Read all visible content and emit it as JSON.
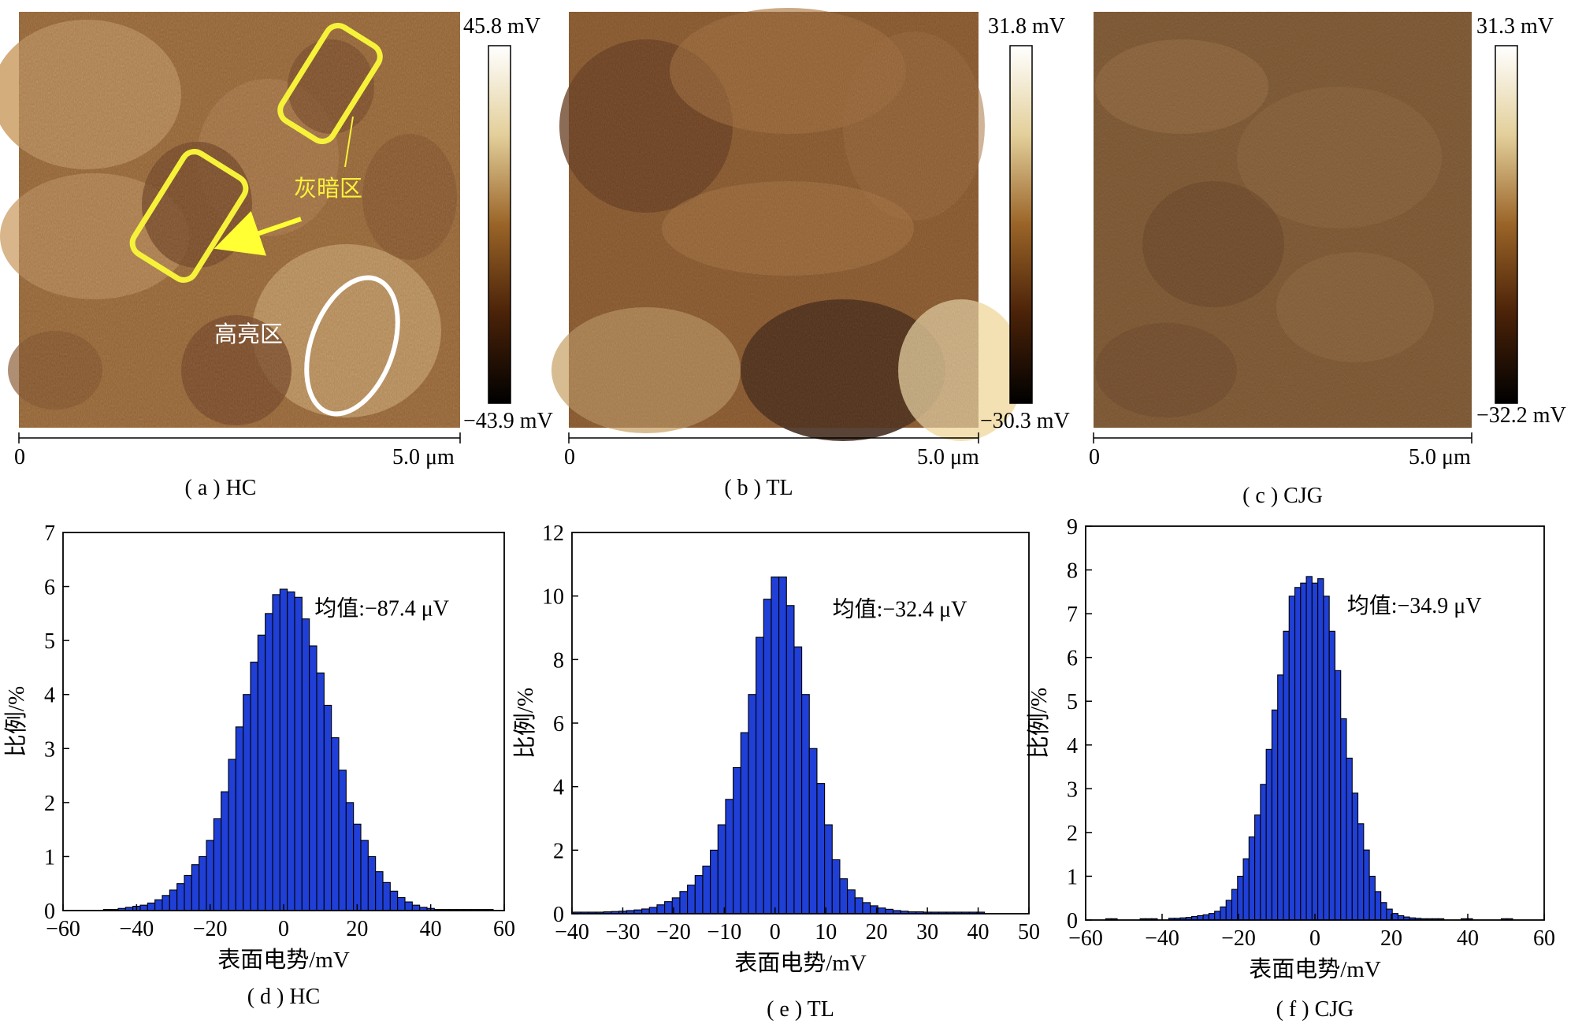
{
  "maps": [
    {
      "caption": "( a ) HC",
      "scale_max": "45.8  mV",
      "scale_min": "−43.9 mV",
      "x_start": "0",
      "x_end": "5.0 μm",
      "annotation_dark": "灰暗区",
      "annotation_bright": "高亮区",
      "colors": {
        "dark": "#5a2e0f",
        "mid": "#9a6428",
        "bright": "#e8c98a"
      }
    },
    {
      "caption": "( b ) TL",
      "scale_max": "31.8  mV",
      "scale_min": "−30.3 mV",
      "x_start": "0",
      "x_end": "5.0 μm",
      "colors": {
        "dark": "#4a2408",
        "mid": "#8a5522",
        "bright": "#e6cc96"
      }
    },
    {
      "caption": "( c ) CJG",
      "scale_max": "31.3  mV",
      "scale_min": "−32.2 mV",
      "x_start": "0",
      "x_end": "5.0 μm",
      "colors": {
        "dark": "#5a3414",
        "mid": "#7e5428",
        "bright": "#c8a06a"
      }
    }
  ],
  "chart_data": [
    {
      "type": "bar",
      "caption": "( d ) HC",
      "xlabel": "表面电势/mV",
      "ylabel": "比例/%",
      "annotation": "均值:−87.4 μV",
      "xlim": [
        -60,
        60
      ],
      "ylim": [
        0,
        7
      ],
      "xticks": [
        -60,
        -40,
        -20,
        0,
        20,
        40,
        60
      ],
      "yticks": [
        0,
        1,
        2,
        3,
        4,
        5,
        6,
        7
      ],
      "bin_width": 2,
      "x": [
        -56,
        -54,
        -52,
        -50,
        -48,
        -46,
        -44,
        -42,
        -40,
        -38,
        -36,
        -34,
        -32,
        -30,
        -28,
        -26,
        -24,
        -22,
        -20,
        -18,
        -16,
        -14,
        -12,
        -10,
        -8,
        -6,
        -4,
        -2,
        0,
        2,
        4,
        6,
        8,
        10,
        12,
        14,
        16,
        18,
        20,
        22,
        24,
        26,
        28,
        30,
        32,
        34,
        36,
        38,
        40,
        42,
        44,
        46,
        48,
        50,
        52,
        54,
        56
      ],
      "values": [
        0,
        0,
        0,
        0,
        0.02,
        0.02,
        0.04,
        0.06,
        0.08,
        0.1,
        0.14,
        0.2,
        0.28,
        0.38,
        0.5,
        0.65,
        0.85,
        1.0,
        1.3,
        1.7,
        2.2,
        2.8,
        3.4,
        4.0,
        4.6,
        5.1,
        5.5,
        5.85,
        5.95,
        5.9,
        5.8,
        5.4,
        4.9,
        4.4,
        3.8,
        3.2,
        2.6,
        2.0,
        1.6,
        1.3,
        1.0,
        0.72,
        0.52,
        0.36,
        0.24,
        0.16,
        0.1,
        0.06,
        0.04,
        0.02,
        0.02,
        0.02,
        0.02,
        0.02,
        0.02,
        0.02,
        0.02
      ],
      "color": "#1f3fd6"
    },
    {
      "type": "bar",
      "caption": "( e ) TL",
      "xlabel": "表面电势/mV",
      "ylabel": "比例/%",
      "annotation": "均值:−32.4 μV",
      "xlim": [
        -40,
        50
      ],
      "ylim": [
        0,
        12
      ],
      "xticks": [
        -40,
        -30,
        -20,
        -10,
        0,
        10,
        20,
        30,
        40,
        50
      ],
      "yticks": [
        0,
        2,
        4,
        6,
        8,
        10,
        12
      ],
      "bin_width": 1.5,
      "x": [
        -39,
        -37.5,
        -36,
        -34.5,
        -33,
        -31.5,
        -30,
        -28.5,
        -27,
        -25.5,
        -24,
        -22.5,
        -21,
        -19.5,
        -18,
        -16.5,
        -15,
        -13.5,
        -12,
        -10.5,
        -9,
        -7.5,
        -6,
        -4.5,
        -3,
        -1.5,
        0,
        1.5,
        3,
        4.5,
        6,
        7.5,
        9,
        10.5,
        12,
        13.5,
        15,
        16.5,
        18,
        19.5,
        21,
        22.5,
        24,
        25.5,
        27,
        28.5,
        30,
        31.5,
        33,
        34.5,
        36,
        37.5,
        39,
        40.5
      ],
      "values": [
        0.05,
        0.05,
        0.05,
        0.05,
        0.06,
        0.07,
        0.08,
        0.1,
        0.12,
        0.15,
        0.2,
        0.28,
        0.38,
        0.5,
        0.7,
        0.9,
        1.2,
        1.5,
        2.0,
        2.8,
        3.6,
        4.6,
        5.7,
        6.9,
        8.7,
        9.9,
        10.6,
        10.6,
        9.7,
        8.4,
        6.9,
        5.2,
        4.1,
        2.8,
        1.7,
        1.1,
        0.75,
        0.5,
        0.35,
        0.25,
        0.18,
        0.14,
        0.1,
        0.08,
        0.06,
        0.06,
        0.05,
        0.05,
        0.05,
        0.05,
        0.05,
        0.05,
        0.05,
        0.05
      ],
      "color": "#1f3fd6"
    },
    {
      "type": "bar",
      "caption": "( f ) CJG",
      "xlabel": "表面电势/mV",
      "ylabel": "比例/%",
      "annotation": "均值:−34.9 μV",
      "xlim": [
        -60,
        60
      ],
      "ylim": [
        0,
        9
      ],
      "xticks": [
        -60,
        -40,
        -20,
        0,
        20,
        40,
        60
      ],
      "yticks": [
        0,
        1,
        2,
        3,
        4,
        5,
        6,
        7,
        8,
        9
      ],
      "bin_width": 1.5,
      "x": [
        -54,
        -52.5,
        -51,
        -49.5,
        -48,
        -46.5,
        -45,
        -43.5,
        -42,
        -40.5,
        -39,
        -37.5,
        -36,
        -34.5,
        -33,
        -31.5,
        -30,
        -28.5,
        -27,
        -25.5,
        -24,
        -22.5,
        -21,
        -19.5,
        -18,
        -16.5,
        -15,
        -13.5,
        -12,
        -10.5,
        -9,
        -7.5,
        -6,
        -4.5,
        -3,
        -1.5,
        0,
        1.5,
        3,
        4.5,
        6,
        7.5,
        9,
        10.5,
        12,
        13.5,
        15,
        16.5,
        18,
        19.5,
        21,
        22.5,
        24,
        25.5,
        27,
        28.5,
        30,
        31.5,
        33,
        34.5,
        36,
        37.5,
        39,
        40.5,
        42,
        43.5,
        45,
        46.5,
        48,
        49.5,
        51,
        52.5,
        54
      ],
      "values": [
        0.03,
        0.03,
        0,
        0,
        0,
        0,
        0.03,
        0.03,
        0.03,
        0,
        0,
        0.04,
        0.04,
        0.05,
        0.06,
        0.08,
        0.1,
        0.12,
        0.15,
        0.2,
        0.3,
        0.45,
        0.7,
        1.0,
        1.4,
        1.9,
        2.4,
        3.1,
        3.9,
        4.8,
        5.6,
        6.6,
        7.4,
        7.6,
        7.7,
        7.85,
        7.7,
        7.8,
        7.4,
        6.6,
        5.7,
        4.6,
        3.7,
        2.9,
        2.2,
        1.6,
        1.0,
        0.65,
        0.4,
        0.25,
        0.15,
        0.1,
        0.07,
        0.05,
        0.04,
        0.03,
        0.03,
        0.03,
        0.03,
        0,
        0,
        0,
        0.03,
        0.03,
        0,
        0,
        0,
        0,
        0,
        0.03,
        0.03,
        0,
        0
      ],
      "color": "#1f3fd6"
    }
  ]
}
